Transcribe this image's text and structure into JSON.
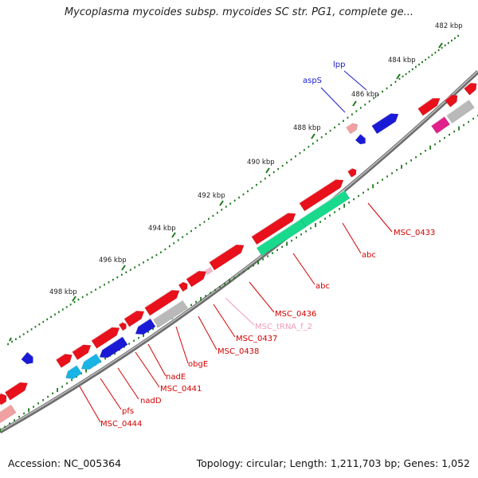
{
  "title": "Mycoplasma mycoides subsp. mycoides SC str. PG1, complete ge...",
  "footer": {
    "accession": "Accession: NC_005364",
    "summary": "Topology: circular; Length: 1,211,703 bp; Genes: 1,052"
  },
  "ruler": {
    "unit": "kbp",
    "ticks": [
      "482 kbp",
      "484 kbp",
      "486 kbp",
      "488 kbp",
      "490 kbp",
      "492 kbp",
      "494 kbp",
      "496 kbp",
      "498 kbp"
    ]
  },
  "labels": [
    {
      "text": "lpp",
      "color": "#1a1acc"
    },
    {
      "text": "aspS",
      "color": "#1a1acc"
    },
    {
      "text": "MSC_0433",
      "color": "#d40000"
    },
    {
      "text": "abc",
      "color": "#d40000"
    },
    {
      "text": "abc",
      "color": "#d40000"
    },
    {
      "text": "MSC_0436",
      "color": "#d40000"
    },
    {
      "text": "MSC_tRNA_f_2",
      "color": "#f29bb8"
    },
    {
      "text": "MSC_0437",
      "color": "#d40000"
    },
    {
      "text": "MSC_0438",
      "color": "#d40000"
    },
    {
      "text": "obgE",
      "color": "#d40000"
    },
    {
      "text": "nadE",
      "color": "#d40000"
    },
    {
      "text": "MSC_0441",
      "color": "#d40000"
    },
    {
      "text": "nadD",
      "color": "#d40000"
    },
    {
      "text": "pfs",
      "color": "#d40000"
    },
    {
      "text": "MSC_0444",
      "color": "#d40000"
    }
  ],
  "colors": {
    "cds_red": "#e8101a",
    "cds_blue": "#1a1ad6",
    "cds_green": "#19d98c",
    "cds_cyan": "#18b4e6",
    "cds_grey": "#b9b9b9",
    "cds_pink": "#f0a0a0",
    "cds_magenta": "#e0208c",
    "backbone": "#8a8a8a",
    "tick": "#1e7a1e"
  }
}
